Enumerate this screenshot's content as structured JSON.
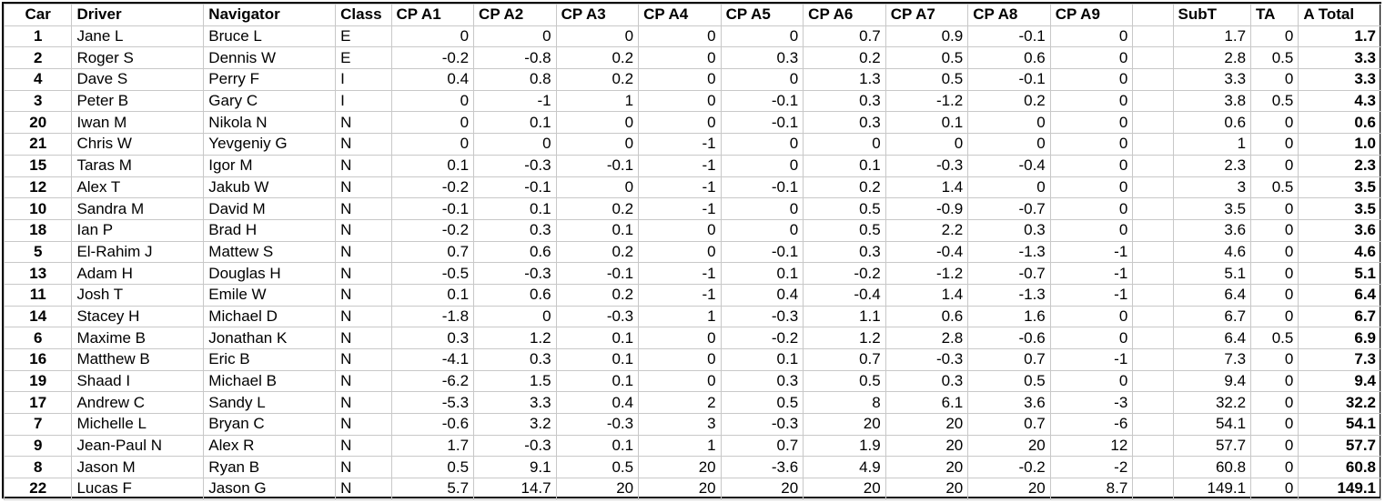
{
  "headers": [
    "Car",
    "Driver",
    "Navigator",
    "Class",
    "CP A1",
    "CP A2",
    "CP A3",
    "CP A4",
    "CP A5",
    "CP A6",
    "CP A7",
    "CP A8",
    "CP A9",
    "",
    "SubT",
    "TA",
    "A Total"
  ],
  "rows": [
    [
      "1",
      "Jane L",
      "Bruce L",
      "E",
      "0",
      "0",
      "0",
      "0",
      "0",
      "0.7",
      "0.9",
      "-0.1",
      "0",
      "",
      "1.7",
      "0",
      "1.7"
    ],
    [
      "2",
      "Roger S",
      "Dennis W",
      "E",
      "-0.2",
      "-0.8",
      "0.2",
      "0",
      "0.3",
      "0.2",
      "0.5",
      "0.6",
      "0",
      "",
      "2.8",
      "0.5",
      "3.3"
    ],
    [
      "4",
      "Dave S",
      "Perry F",
      "I",
      "0.4",
      "0.8",
      "0.2",
      "0",
      "0",
      "1.3",
      "0.5",
      "-0.1",
      "0",
      "",
      "3.3",
      "0",
      "3.3"
    ],
    [
      "3",
      "Peter B",
      "Gary C",
      "I",
      "0",
      "-1",
      "1",
      "0",
      "-0.1",
      "0.3",
      "-1.2",
      "0.2",
      "0",
      "",
      "3.8",
      "0.5",
      "4.3"
    ],
    [
      "20",
      "Iwan M",
      "Nikola N",
      "N",
      "0",
      "0.1",
      "0",
      "0",
      "-0.1",
      "0.3",
      "0.1",
      "0",
      "0",
      "",
      "0.6",
      "0",
      "0.6"
    ],
    [
      "21",
      "Chris W",
      "Yevgeniy G",
      "N",
      "0",
      "0",
      "0",
      "-1",
      "0",
      "0",
      "0",
      "0",
      "0",
      "",
      "1",
      "0",
      "1.0"
    ],
    [
      "15",
      "Taras M",
      "Igor M",
      "N",
      "0.1",
      "-0.3",
      "-0.1",
      "-1",
      "0",
      "0.1",
      "-0.3",
      "-0.4",
      "0",
      "",
      "2.3",
      "0",
      "2.3"
    ],
    [
      "12",
      "Alex T",
      "Jakub W",
      "N",
      "-0.2",
      "-0.1",
      "0",
      "-1",
      "-0.1",
      "0.2",
      "1.4",
      "0",
      "0",
      "",
      "3",
      "0.5",
      "3.5"
    ],
    [
      "10",
      "Sandra M",
      "David M",
      "N",
      "-0.1",
      "0.1",
      "0.2",
      "-1",
      "0",
      "0.5",
      "-0.9",
      "-0.7",
      "0",
      "",
      "3.5",
      "0",
      "3.5"
    ],
    [
      "18",
      "Ian P",
      "Brad H",
      "N",
      "-0.2",
      "0.3",
      "0.1",
      "0",
      "0",
      "0.5",
      "2.2",
      "0.3",
      "0",
      "",
      "3.6",
      "0",
      "3.6"
    ],
    [
      "5",
      "El-Rahim J",
      "Mattew S",
      "N",
      "0.7",
      "0.6",
      "0.2",
      "0",
      "-0.1",
      "0.3",
      "-0.4",
      "-1.3",
      "-1",
      "",
      "4.6",
      "0",
      "4.6"
    ],
    [
      "13",
      "Adam H",
      "Douglas H",
      "N",
      "-0.5",
      "-0.3",
      "-0.1",
      "-1",
      "0.1",
      "-0.2",
      "-1.2",
      "-0.7",
      "-1",
      "",
      "5.1",
      "0",
      "5.1"
    ],
    [
      "11",
      "Josh T",
      "Emile W",
      "N",
      "0.1",
      "0.6",
      "0.2",
      "-1",
      "0.4",
      "-0.4",
      "1.4",
      "-1.3",
      "-1",
      "",
      "6.4",
      "0",
      "6.4"
    ],
    [
      "14",
      "Stacey H",
      "Michael D",
      "N",
      "-1.8",
      "0",
      "-0.3",
      "1",
      "-0.3",
      "1.1",
      "0.6",
      "1.6",
      "0",
      "",
      "6.7",
      "0",
      "6.7"
    ],
    [
      "6",
      "Maxime B",
      "Jonathan K",
      "N",
      "0.3",
      "1.2",
      "0.1",
      "0",
      "-0.2",
      "1.2",
      "2.8",
      "-0.6",
      "0",
      "",
      "6.4",
      "0.5",
      "6.9"
    ],
    [
      "16",
      "Matthew B",
      "Eric B",
      "N",
      "-4.1",
      "0.3",
      "0.1",
      "0",
      "0.1",
      "0.7",
      "-0.3",
      "0.7",
      "-1",
      "",
      "7.3",
      "0",
      "7.3"
    ],
    [
      "19",
      "Shaad I",
      "Michael B",
      "N",
      "-6.2",
      "1.5",
      "0.1",
      "0",
      "0.3",
      "0.5",
      "0.3",
      "0.5",
      "0",
      "",
      "9.4",
      "0",
      "9.4"
    ],
    [
      "17",
      "Andrew C",
      "Sandy L",
      "N",
      "-5.3",
      "3.3",
      "0.4",
      "2",
      "0.5",
      "8",
      "6.1",
      "3.6",
      "-3",
      "",
      "32.2",
      "0",
      "32.2"
    ],
    [
      "7",
      "Michelle L",
      "Bryan C",
      "N",
      "-0.6",
      "3.2",
      "-0.3",
      "3",
      "-0.3",
      "20",
      "20",
      "0.7",
      "-6",
      "",
      "54.1",
      "0",
      "54.1"
    ],
    [
      "9",
      "Jean-Paul N",
      "Alex R",
      "N",
      "1.7",
      "-0.3",
      "0.1",
      "1",
      "0.7",
      "1.9",
      "20",
      "20",
      "12",
      "",
      "57.7",
      "0",
      "57.7"
    ],
    [
      "8",
      "Jason M",
      "Ryan B",
      "N",
      "0.5",
      "9.1",
      "0.5",
      "20",
      "-3.6",
      "4.9",
      "20",
      "-0.2",
      "-2",
      "",
      "60.8",
      "0",
      "60.8"
    ],
    [
      "22",
      "Lucas F",
      "Jason G",
      "N",
      "5.7",
      "14.7",
      "20",
      "20",
      "20",
      "20",
      "20",
      "20",
      "8.7",
      "",
      "149.1",
      "0",
      "149.1"
    ]
  ]
}
